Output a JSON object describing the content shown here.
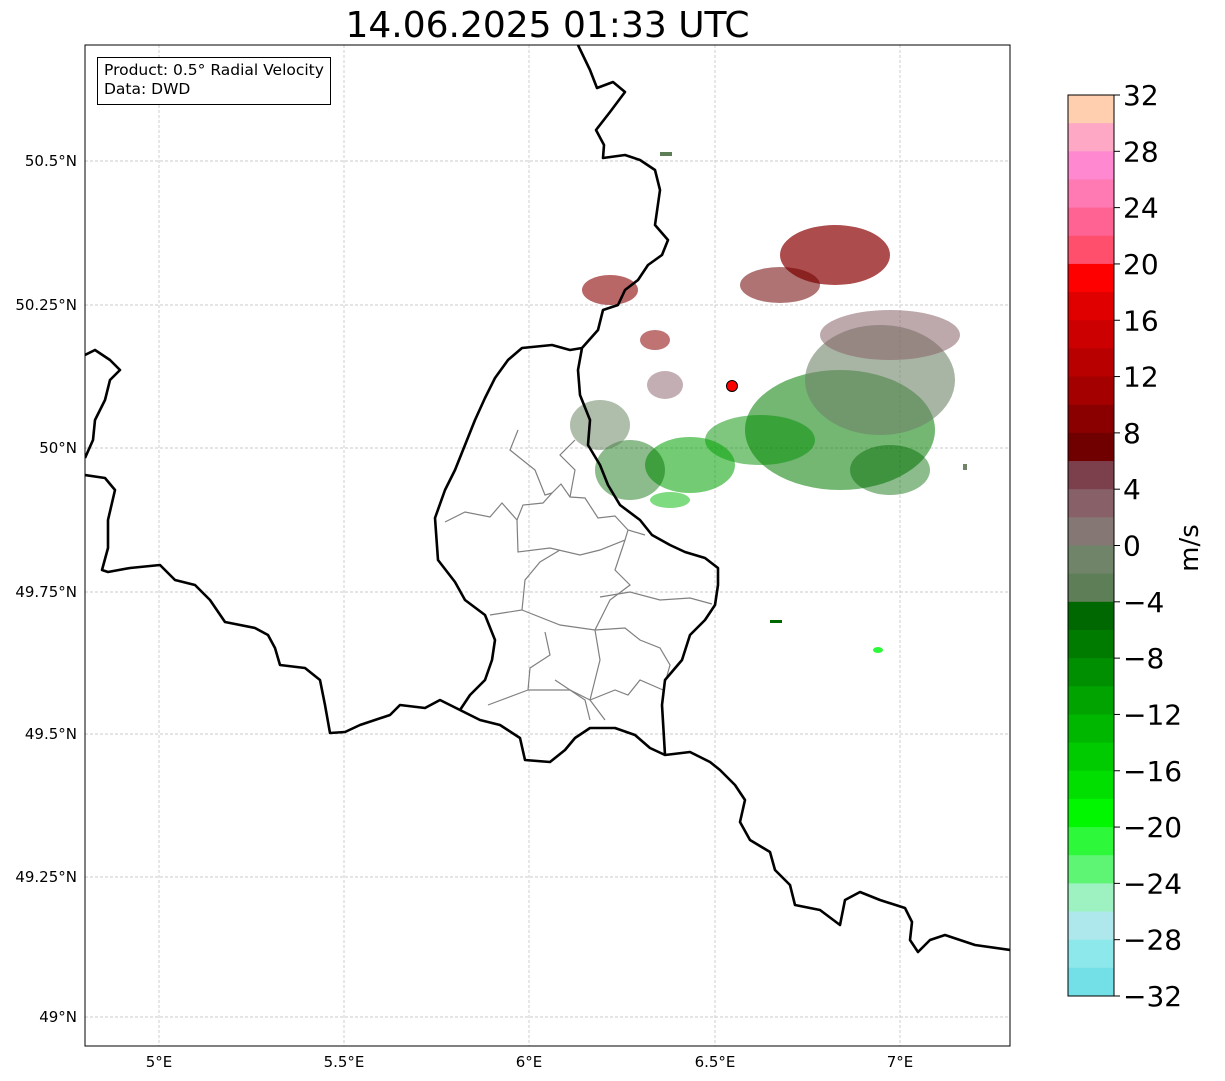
{
  "title": "14.06.2025 01:33 UTC",
  "info": {
    "product": "Product: 0.5° Radial Velocity",
    "source": "Data: DWD"
  },
  "axes": {
    "lon_ticks": [
      "5°E",
      "5.5°E",
      "6°E",
      "6.5°E",
      "7°E"
    ],
    "lat_ticks": [
      "50.5°N",
      "50.25°N",
      "50°N",
      "49.75°N",
      "49.5°N",
      "49.25°N",
      "49°N"
    ]
  },
  "colorbar": {
    "label": "m/s",
    "ticks": [
      "32",
      "28",
      "24",
      "20",
      "16",
      "12",
      "8",
      "4",
      "0",
      "−4",
      "−8",
      "−12",
      "−16",
      "−20",
      "−24",
      "−28",
      "−32"
    ],
    "colors": [
      "#ffcfb0",
      "#ffa8c5",
      "#ff88d0",
      "#ff79b2",
      "#ff6394",
      "#ff4f6d",
      "#ff0000",
      "#e00000",
      "#cc0000",
      "#b80000",
      "#a40000",
      "#8a0000",
      "#700000",
      "#7c3f4c",
      "#876068",
      "#857874",
      "#6f8468",
      "#5e7e57",
      "#006800",
      "#007b00",
      "#008f00",
      "#00a300",
      "#00b700",
      "#00cb00",
      "#00df00",
      "#00f700",
      "#2df93a",
      "#5ef574",
      "#9ef2c2",
      "#aee8ec",
      "#8de8ec",
      "#72e0e6"
    ],
    "site_color": "#ff0000"
  }
}
